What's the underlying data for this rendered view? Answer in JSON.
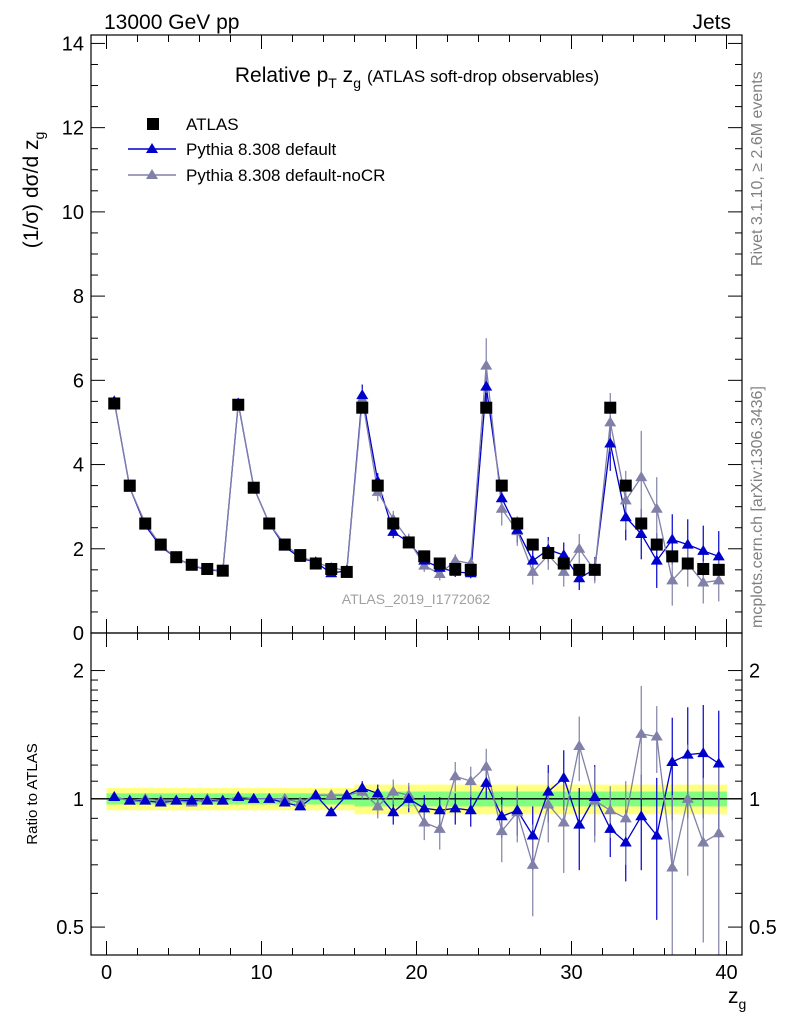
{
  "header": {
    "left": "13000 GeV pp",
    "right": "Jets"
  },
  "side": {
    "rivet": "Rivet 3.1.10, ≥ 2.6M events",
    "mcplots": "mcplots.cern.ch [arXiv:1306.3436]"
  },
  "chart_data": [
    {
      "type": "scatter",
      "title": "Relative p_T z_g (ATLAS soft-drop observables)",
      "title_main": "Relative p",
      "title_sub1": "T",
      "title_mid": " z",
      "title_sub2": "g",
      "title_tail": "(ATLAS soft-drop observables)",
      "watermark": "ATLAS_2019_I1772062",
      "ylabel": "(1/σ) dσ/d z_g",
      "ylabel_main": "(1/σ) dσ/d z",
      "ylabel_sub": "g",
      "xlim": [
        -1,
        41
      ],
      "ylim": [
        0,
        14.2
      ],
      "y_ticks": [
        "0",
        "2",
        "4",
        "6",
        "8",
        "10",
        "12",
        "14"
      ],
      "grid": false,
      "legend_position": "top-left",
      "x": [
        0.5,
        1.5,
        2.5,
        3.5,
        4.5,
        5.5,
        6.5,
        7.5,
        8.5,
        9.5,
        10.5,
        11.5,
        12.5,
        13.5,
        14.5,
        15.5,
        16.5,
        17.5,
        18.5,
        19.5,
        20.5,
        21.5,
        22.5,
        23.5,
        24.5,
        25.5,
        26.5,
        27.5,
        28.5,
        29.5,
        30.5,
        31.5,
        32.5,
        33.5,
        34.5,
        35.5,
        36.5,
        37.5,
        38.5,
        39.5
      ],
      "series": [
        {
          "name": "ATLAS",
          "color": "#000000",
          "marker": "square",
          "values": [
            5.45,
            3.5,
            2.6,
            2.1,
            1.8,
            1.62,
            1.52,
            1.48,
            5.42,
            3.45,
            2.6,
            2.1,
            1.85,
            1.65,
            1.52,
            1.45,
            5.35,
            3.5,
            2.6,
            2.15,
            1.82,
            1.65,
            1.52,
            1.5,
            5.35,
            3.5,
            2.6,
            2.1,
            1.9,
            1.65,
            1.5,
            1.5,
            5.35,
            3.5,
            2.6,
            2.1,
            1.82,
            1.65,
            1.52,
            1.5
          ]
        },
        {
          "name": "Pythia 8.308 default",
          "color": "#0000cc",
          "marker": "triangle",
          "values": [
            5.5,
            3.45,
            2.55,
            2.05,
            1.78,
            1.6,
            1.5,
            1.47,
            5.45,
            3.45,
            2.6,
            2.05,
            1.78,
            1.68,
            1.42,
            1.48,
            5.65,
            3.6,
            2.4,
            2.15,
            1.72,
            1.55,
            1.45,
            1.42,
            5.85,
            3.2,
            2.45,
            1.72,
            1.98,
            1.85,
            1.3,
            1.52,
            4.5,
            2.75,
            2.35,
            1.72,
            2.22,
            2.1,
            1.95,
            1.82
          ],
          "errors": [
            0.05,
            0.05,
            0.04,
            0.04,
            0.04,
            0.04,
            0.04,
            0.04,
            0.07,
            0.06,
            0.05,
            0.05,
            0.05,
            0.05,
            0.05,
            0.05,
            0.25,
            0.2,
            0.15,
            0.14,
            0.12,
            0.12,
            0.12,
            0.12,
            0.5,
            0.35,
            0.3,
            0.3,
            0.3,
            0.3,
            0.28,
            0.28,
            0.65,
            0.55,
            0.6,
            0.65,
            0.6,
            0.6,
            0.6,
            0.6
          ]
        },
        {
          "name": "Pythia 8.308 default-noCR",
          "color": "#8080a8",
          "marker": "triangle",
          "values": [
            5.5,
            3.45,
            2.6,
            2.08,
            1.78,
            1.6,
            1.52,
            1.47,
            5.45,
            3.45,
            2.6,
            2.1,
            1.82,
            1.68,
            1.55,
            1.48,
            5.55,
            3.35,
            2.7,
            2.2,
            1.6,
            1.4,
            1.72,
            1.65,
            6.35,
            2.95,
            2.42,
            1.45,
            1.85,
            1.45,
            2.0,
            1.48,
            5.0,
            3.15,
            3.7,
            2.95,
            1.25,
            1.65,
            1.2,
            1.25
          ],
          "errors": [
            0.05,
            0.05,
            0.04,
            0.04,
            0.04,
            0.04,
            0.04,
            0.04,
            0.07,
            0.06,
            0.05,
            0.05,
            0.05,
            0.05,
            0.05,
            0.05,
            0.25,
            0.22,
            0.2,
            0.16,
            0.15,
            0.15,
            0.15,
            0.15,
            0.65,
            0.4,
            0.35,
            0.3,
            0.35,
            0.35,
            0.35,
            0.3,
            0.7,
            0.7,
            1.1,
            0.75,
            0.6,
            0.55,
            0.5,
            0.5
          ]
        }
      ]
    },
    {
      "type": "scatter",
      "title": "",
      "ylabel": "Ratio to ATLAS",
      "xlabel": "z_g",
      "xlabel_main": "z",
      "xlabel_sub": "g",
      "xlim": [
        -1,
        41
      ],
      "ylim": [
        0.43,
        2.45
      ],
      "y_scale": "log",
      "y_ticks": [
        "0.5",
        "1",
        "2"
      ],
      "x_ticks": [
        "0",
        "10",
        "20",
        "30",
        "40"
      ],
      "reference_line": 1,
      "band_inner_color": "#80ff80",
      "band_outer_color": "#ffff80",
      "band_half_width": [
        0.03,
        0.03,
        0.03,
        0.03,
        0.03,
        0.03,
        0.03,
        0.03,
        0.03,
        0.03,
        0.03,
        0.03,
        0.03,
        0.03,
        0.03,
        0.03,
        0.04,
        0.04,
        0.04,
        0.04,
        0.04,
        0.04,
        0.04,
        0.04,
        0.04,
        0.04,
        0.04,
        0.04,
        0.04,
        0.04,
        0.04,
        0.04,
        0.04,
        0.04,
        0.04,
        0.04,
        0.04,
        0.04,
        0.04,
        0.04
      ],
      "x": [
        0.5,
        1.5,
        2.5,
        3.5,
        4.5,
        5.5,
        6.5,
        7.5,
        8.5,
        9.5,
        10.5,
        11.5,
        12.5,
        13.5,
        14.5,
        15.5,
        16.5,
        17.5,
        18.5,
        19.5,
        20.5,
        21.5,
        22.5,
        23.5,
        24.5,
        25.5,
        26.5,
        27.5,
        28.5,
        29.5,
        30.5,
        31.5,
        32.5,
        33.5,
        34.5,
        35.5,
        36.5,
        37.5,
        38.5,
        39.5
      ],
      "series": [
        {
          "name": "Pythia 8.308 default",
          "color": "#0000cc",
          "marker": "triangle",
          "values": [
            1.01,
            0.99,
            0.99,
            0.98,
            0.99,
            0.99,
            0.99,
            0.99,
            1.01,
            1.0,
            1.0,
            0.98,
            0.96,
            1.02,
            0.93,
            1.02,
            1.06,
            1.03,
            0.93,
            1.0,
            0.95,
            0.94,
            0.95,
            0.94,
            1.09,
            0.91,
            0.94,
            0.82,
            1.04,
            1.12,
            0.87,
            1.01,
            0.85,
            0.79,
            0.91,
            0.82,
            1.22,
            1.27,
            1.28,
            1.21
          ],
          "errors": [
            0.01,
            0.01,
            0.01,
            0.01,
            0.01,
            0.01,
            0.01,
            0.01,
            0.01,
            0.01,
            0.01,
            0.01,
            0.01,
            0.01,
            0.02,
            0.02,
            0.04,
            0.05,
            0.06,
            0.07,
            0.07,
            0.07,
            0.08,
            0.08,
            0.09,
            0.1,
            0.12,
            0.14,
            0.16,
            0.18,
            0.19,
            0.19,
            0.12,
            0.15,
            0.23,
            0.3,
            0.33,
            0.37,
            0.38,
            0.4
          ]
        },
        {
          "name": "Pythia 8.308 default-noCR",
          "color": "#8080a8",
          "marker": "triangle",
          "values": [
            1.01,
            0.99,
            1.0,
            0.99,
            0.99,
            0.98,
            1.0,
            0.99,
            1.01,
            1.0,
            1.0,
            1.0,
            0.98,
            1.02,
            1.02,
            1.02,
            1.04,
            0.96,
            1.04,
            1.02,
            0.88,
            0.85,
            1.13,
            1.1,
            1.19,
            0.84,
            0.93,
            0.7,
            0.97,
            0.88,
            1.33,
            0.99,
            0.94,
            0.9,
            1.42,
            1.4,
            0.69,
            1.0,
            0.79,
            0.83
          ],
          "errors": [
            0.01,
            0.01,
            0.01,
            0.01,
            0.01,
            0.01,
            0.01,
            0.01,
            0.01,
            0.01,
            0.01,
            0.01,
            0.01,
            0.01,
            0.02,
            0.02,
            0.04,
            0.06,
            0.07,
            0.07,
            0.08,
            0.09,
            0.09,
            0.09,
            0.12,
            0.13,
            0.14,
            0.17,
            0.18,
            0.21,
            0.23,
            0.2,
            0.13,
            0.2,
            0.42,
            0.25,
            0.33,
            0.34,
            0.33,
            0.4
          ]
        }
      ]
    }
  ]
}
